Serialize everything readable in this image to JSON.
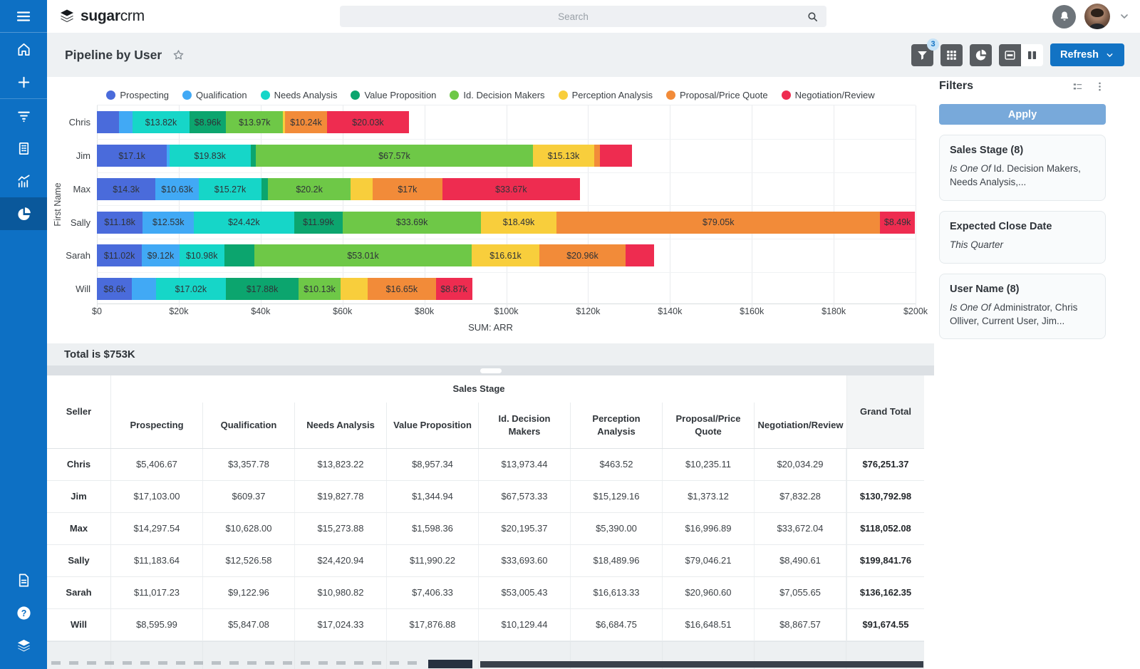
{
  "theme": {
    "accent": "#1273c4",
    "sidebar": "#0d70c4",
    "apply_button": "#78a9da"
  },
  "sidebar": {
    "items_top": [
      {
        "icon": "home-icon"
      },
      {
        "icon": "plus-icon"
      }
    ],
    "items_middle": [
      {
        "icon": "funnel-lines-icon"
      },
      {
        "icon": "building-icon"
      },
      {
        "icon": "chart-line-icon"
      },
      {
        "icon": "pie-chart-icon",
        "active": true
      }
    ],
    "items_bottom": [
      {
        "icon": "document-icon"
      },
      {
        "icon": "help-icon"
      },
      {
        "icon": "layers-icon"
      }
    ]
  },
  "header": {
    "logo_bold": "sugar",
    "logo_light": "crm",
    "search_placeholder": "Search"
  },
  "page": {
    "title": "Pipeline by User"
  },
  "toolbar": {
    "filter_badge": "3",
    "refresh_label": "Refresh"
  },
  "filters_panel": {
    "title": "Filters",
    "apply_label": "Apply",
    "cards": [
      {
        "title": "Sales Stage (8)",
        "operator": "Is One Of",
        "value": "Id. Decision Makers, Needs Analysis,...",
        "value_italic": false
      },
      {
        "title": "Expected Close Date",
        "operator": "",
        "value": "This Quarter",
        "value_italic": true
      },
      {
        "title": "User Name (8)",
        "operator": "Is One Of",
        "value": "Administrator, Chris Olliver, Current User, Jim...",
        "value_italic": false
      }
    ]
  },
  "summary": {
    "total_label": "Total is $753K"
  },
  "chart_data": {
    "type": "bar",
    "stacked": true,
    "orientation": "horizontal",
    "title": "",
    "xlabel": "SUM: ARR",
    "ylabel": "First Name",
    "xlim": [
      0,
      200000
    ],
    "x_ticks": [
      "$0",
      "$20k",
      "$40k",
      "$60k",
      "$80k",
      "$100k",
      "$120k",
      "$140k",
      "$160k",
      "$180k",
      "$200k"
    ],
    "grid": "vertical",
    "legend_position": "top",
    "categories": [
      "Chris",
      "Jim",
      "Max",
      "Sally",
      "Sarah",
      "Will"
    ],
    "series": [
      {
        "name": "Prospecting",
        "color": "#4a6bdb",
        "values": [
          5406.67,
          17103.0,
          14297.54,
          11183.64,
          11017.23,
          8595.99
        ],
        "bar_labels": [
          null,
          "$17.1k",
          "$14.3k",
          "$11.18k",
          "$11.02k",
          "$8.6k"
        ]
      },
      {
        "name": "Qualification",
        "color": "#41a9f5",
        "values": [
          3357.78,
          609.37,
          10628.0,
          12526.58,
          9122.96,
          5847.08
        ],
        "bar_labels": [
          null,
          null,
          "$10.63k",
          "$12.53k",
          "$9.12k",
          null
        ]
      },
      {
        "name": "Needs Analysis",
        "color": "#16d6c8",
        "values": [
          13823.22,
          19827.78,
          15273.88,
          24420.94,
          10980.82,
          17024.33
        ],
        "bar_labels": [
          "$13.82k",
          "$19.83k",
          "$15.27k",
          "$24.42k",
          "$10.98k",
          "$17.02k"
        ]
      },
      {
        "name": "Value Proposition",
        "color": "#0ca56e",
        "values": [
          8957.34,
          1344.94,
          1598.36,
          11990.22,
          7406.33,
          17876.88
        ],
        "bar_labels": [
          "$8.96k",
          null,
          null,
          "$11.99k",
          null,
          "$17.88k"
        ]
      },
      {
        "name": "Id. Decision Makers",
        "color": "#6ec847",
        "values": [
          13973.44,
          67573.33,
          20195.37,
          33693.6,
          53005.43,
          10129.44
        ],
        "bar_labels": [
          "$13.97k",
          "$67.57k",
          "$20.2k",
          "$33.69k",
          "$53.01k",
          "$10.13k"
        ]
      },
      {
        "name": "Perception Analysis",
        "color": "#f8ce3c",
        "values": [
          463.52,
          15129.16,
          5390.0,
          18489.96,
          16613.33,
          6684.75
        ],
        "bar_labels": [
          null,
          "$15.13k",
          null,
          "$18.49k",
          "$16.61k",
          null
        ]
      },
      {
        "name": "Proposal/Price Quote",
        "color": "#f28b39",
        "values": [
          10235.11,
          1373.12,
          16996.89,
          79046.21,
          20960.6,
          16648.51
        ],
        "bar_labels": [
          "$10.24k",
          null,
          "$17k",
          "$79.05k",
          "$20.96k",
          "$16.65k"
        ]
      },
      {
        "name": "Negotiation/Review",
        "color": "#ee2c50",
        "values": [
          20034.29,
          7832.28,
          33672.04,
          8490.61,
          7055.65,
          8867.57
        ],
        "bar_labels": [
          "$20.03k",
          null,
          "$33.67k",
          "$8.49k",
          null,
          "$8.87k"
        ]
      }
    ]
  },
  "table": {
    "group_header": "Sales Stage",
    "seller_header": "Seller",
    "grand_total_header": "Grand Total",
    "columns": [
      "Prospecting",
      "Qualification",
      "Needs Analysis",
      "Value Proposition",
      "Id. Decision Makers",
      "Perception Analysis",
      "Proposal/Price Quote",
      "Negotiation/Review"
    ],
    "rows": [
      {
        "seller": "Chris",
        "values": [
          "$5,406.67",
          "$3,357.78",
          "$13,823.22",
          "$8,957.34",
          "$13,973.44",
          "$463.52",
          "$10,235.11",
          "$20,034.29"
        ],
        "grand_total": "$76,251.37"
      },
      {
        "seller": "Jim",
        "values": [
          "$17,103.00",
          "$609.37",
          "$19,827.78",
          "$1,344.94",
          "$67,573.33",
          "$15,129.16",
          "$1,373.12",
          "$7,832.28"
        ],
        "grand_total": "$130,792.98"
      },
      {
        "seller": "Max",
        "values": [
          "$14,297.54",
          "$10,628.00",
          "$15,273.88",
          "$1,598.36",
          "$20,195.37",
          "$5,390.00",
          "$16,996.89",
          "$33,672.04"
        ],
        "grand_total": "$118,052.08"
      },
      {
        "seller": "Sally",
        "values": [
          "$11,183.64",
          "$12,526.58",
          "$24,420.94",
          "$11,990.22",
          "$33,693.60",
          "$18,489.96",
          "$79,046.21",
          "$8,490.61"
        ],
        "grand_total": "$199,841.76"
      },
      {
        "seller": "Sarah",
        "values": [
          "$11,017.23",
          "$9,122.96",
          "$10,980.82",
          "$7,406.33",
          "$53,005.43",
          "$16,613.33",
          "$20,960.60",
          "$7,055.65"
        ],
        "grand_total": "$136,162.35"
      },
      {
        "seller": "Will",
        "values": [
          "$8,595.99",
          "$5,847.08",
          "$17,024.33",
          "$17,876.88",
          "$10,129.44",
          "$6,684.75",
          "$16,648.51",
          "$8,867.57"
        ],
        "grand_total": "$91,674.55"
      }
    ]
  }
}
